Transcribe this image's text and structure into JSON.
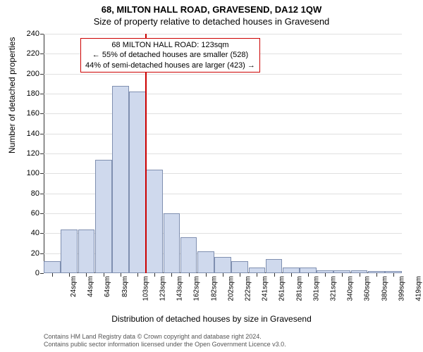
{
  "title": "68, MILTON HALL ROAD, GRAVESEND, DA12 1QW",
  "subtitle": "Size of property relative to detached houses in Gravesend",
  "ylabel": "Number of detached properties",
  "xlabel": "Distribution of detached houses by size in Gravesend",
  "chart": {
    "type": "histogram",
    "ylim": [
      0,
      240
    ],
    "ytick_step": 20,
    "bar_fill": "#cfd9ed",
    "bar_border": "#7f8fb0",
    "grid_color": "#e0e0e0",
    "background_color": "#ffffff",
    "marker_color": "#cc0000",
    "marker_category_index": 5,
    "categories": [
      "24sqm",
      "44sqm",
      "64sqm",
      "83sqm",
      "103sqm",
      "123sqm",
      "143sqm",
      "162sqm",
      "182sqm",
      "202sqm",
      "222sqm",
      "241sqm",
      "261sqm",
      "281sqm",
      "301sqm",
      "321sqm",
      "340sqm",
      "360sqm",
      "380sqm",
      "399sqm",
      "419sqm"
    ],
    "values": [
      12,
      44,
      44,
      114,
      188,
      182,
      104,
      60,
      36,
      22,
      16,
      12,
      6,
      14,
      6,
      6,
      3,
      3,
      3,
      2,
      2
    ]
  },
  "annotation": {
    "line1": "68 MILTON HALL ROAD: 123sqm",
    "line2": "← 55% of detached houses are smaller (528)",
    "line3": "44% of semi-detached houses are larger (423) →",
    "border_color": "#cc0000"
  },
  "footer": {
    "line1": "Contains HM Land Registry data © Crown copyright and database right 2024.",
    "line2": "Contains public sector information licensed under the Open Government Licence v3.0."
  }
}
